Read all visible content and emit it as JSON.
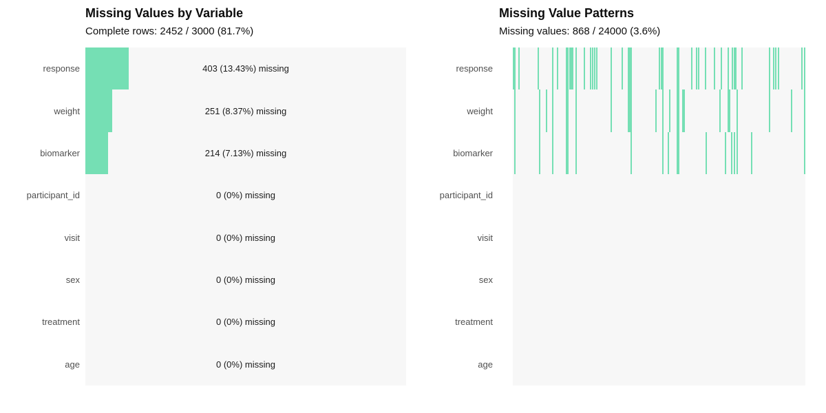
{
  "colors": {
    "accent_green": "#75dfb4",
    "plot_background": "#f7f7f7",
    "title_text": "#0d0d0d",
    "axis_label_text": "#505050",
    "annotation_text": "#1a1a1a",
    "page_background": "#ffffff"
  },
  "chart_data": [
    {
      "type": "bar",
      "orientation": "horizontal",
      "title": "Missing Values by Variable",
      "subtitle": "Complete rows: 2452 / 3000 (81.7%)",
      "categories": [
        "response",
        "weight",
        "biomarker",
        "participant_id",
        "visit",
        "sex",
        "treatment",
        "age"
      ],
      "values_pct": [
        13.43,
        8.37,
        7.13,
        0,
        0,
        0,
        0,
        0
      ],
      "values_count": [
        403,
        251,
        214,
        0,
        0,
        0,
        0,
        0
      ],
      "bar_labels": [
        "403 (13.43%) missing",
        "251 (8.37%) missing",
        "214 (7.13%) missing",
        "0 (0%) missing",
        "0 (0%) missing",
        "0 (0%) missing",
        "0 (0%) missing",
        "0 (0%) missing"
      ],
      "xlim": [
        0,
        100
      ],
      "grid": false,
      "legend": "none",
      "bar_color": "#75dfb4"
    },
    {
      "type": "heatmap",
      "title": "Missing Value Patterns",
      "subtitle": "Missing values: 868 / 24000 (3.6%)",
      "categories": [
        "response",
        "weight",
        "biomarker",
        "participant_id",
        "visit",
        "sex",
        "treatment",
        "age"
      ],
      "n_observations": 3000,
      "n_cells": 24000,
      "n_missing": 868,
      "grid": false,
      "legend": "none",
      "strip_color": "#75dfb4",
      "missing_strip_positions": {
        "response": [
          0.0,
          0.005,
          0.019,
          0.085,
          0.134,
          0.151,
          0.181,
          0.186,
          0.193,
          0.198,
          0.202,
          0.214,
          0.242,
          0.264,
          0.271,
          0.278,
          0.285,
          0.334,
          0.372,
          0.393,
          0.398,
          0.402,
          0.499,
          0.506,
          0.511,
          0.56,
          0.565,
          0.609,
          0.626,
          0.633,
          0.656,
          0.687,
          0.711,
          0.734,
          0.748,
          0.755,
          0.76,
          0.781,
          0.875,
          0.889,
          0.896,
          0.906,
          0.986,
          0.998
        ],
        "weight": [
          0.005,
          0.089,
          0.113,
          0.134,
          0.181,
          0.186,
          0.214,
          0.334,
          0.393,
          0.398,
          0.402,
          0.487,
          0.511,
          0.534,
          0.56,
          0.565,
          0.579,
          0.584,
          0.706,
          0.734,
          0.739,
          0.765,
          0.875,
          0.951,
          0.998
        ],
        "biomarker": [
          0.005,
          0.089,
          0.134,
          0.181,
          0.186,
          0.214,
          0.402,
          0.511,
          0.529,
          0.56,
          0.565,
          0.659,
          0.725,
          0.746,
          0.755,
          0.765,
          0.814,
          0.998
        ],
        "participant_id": [],
        "visit": [],
        "sex": [],
        "treatment": [],
        "age": []
      }
    }
  ]
}
